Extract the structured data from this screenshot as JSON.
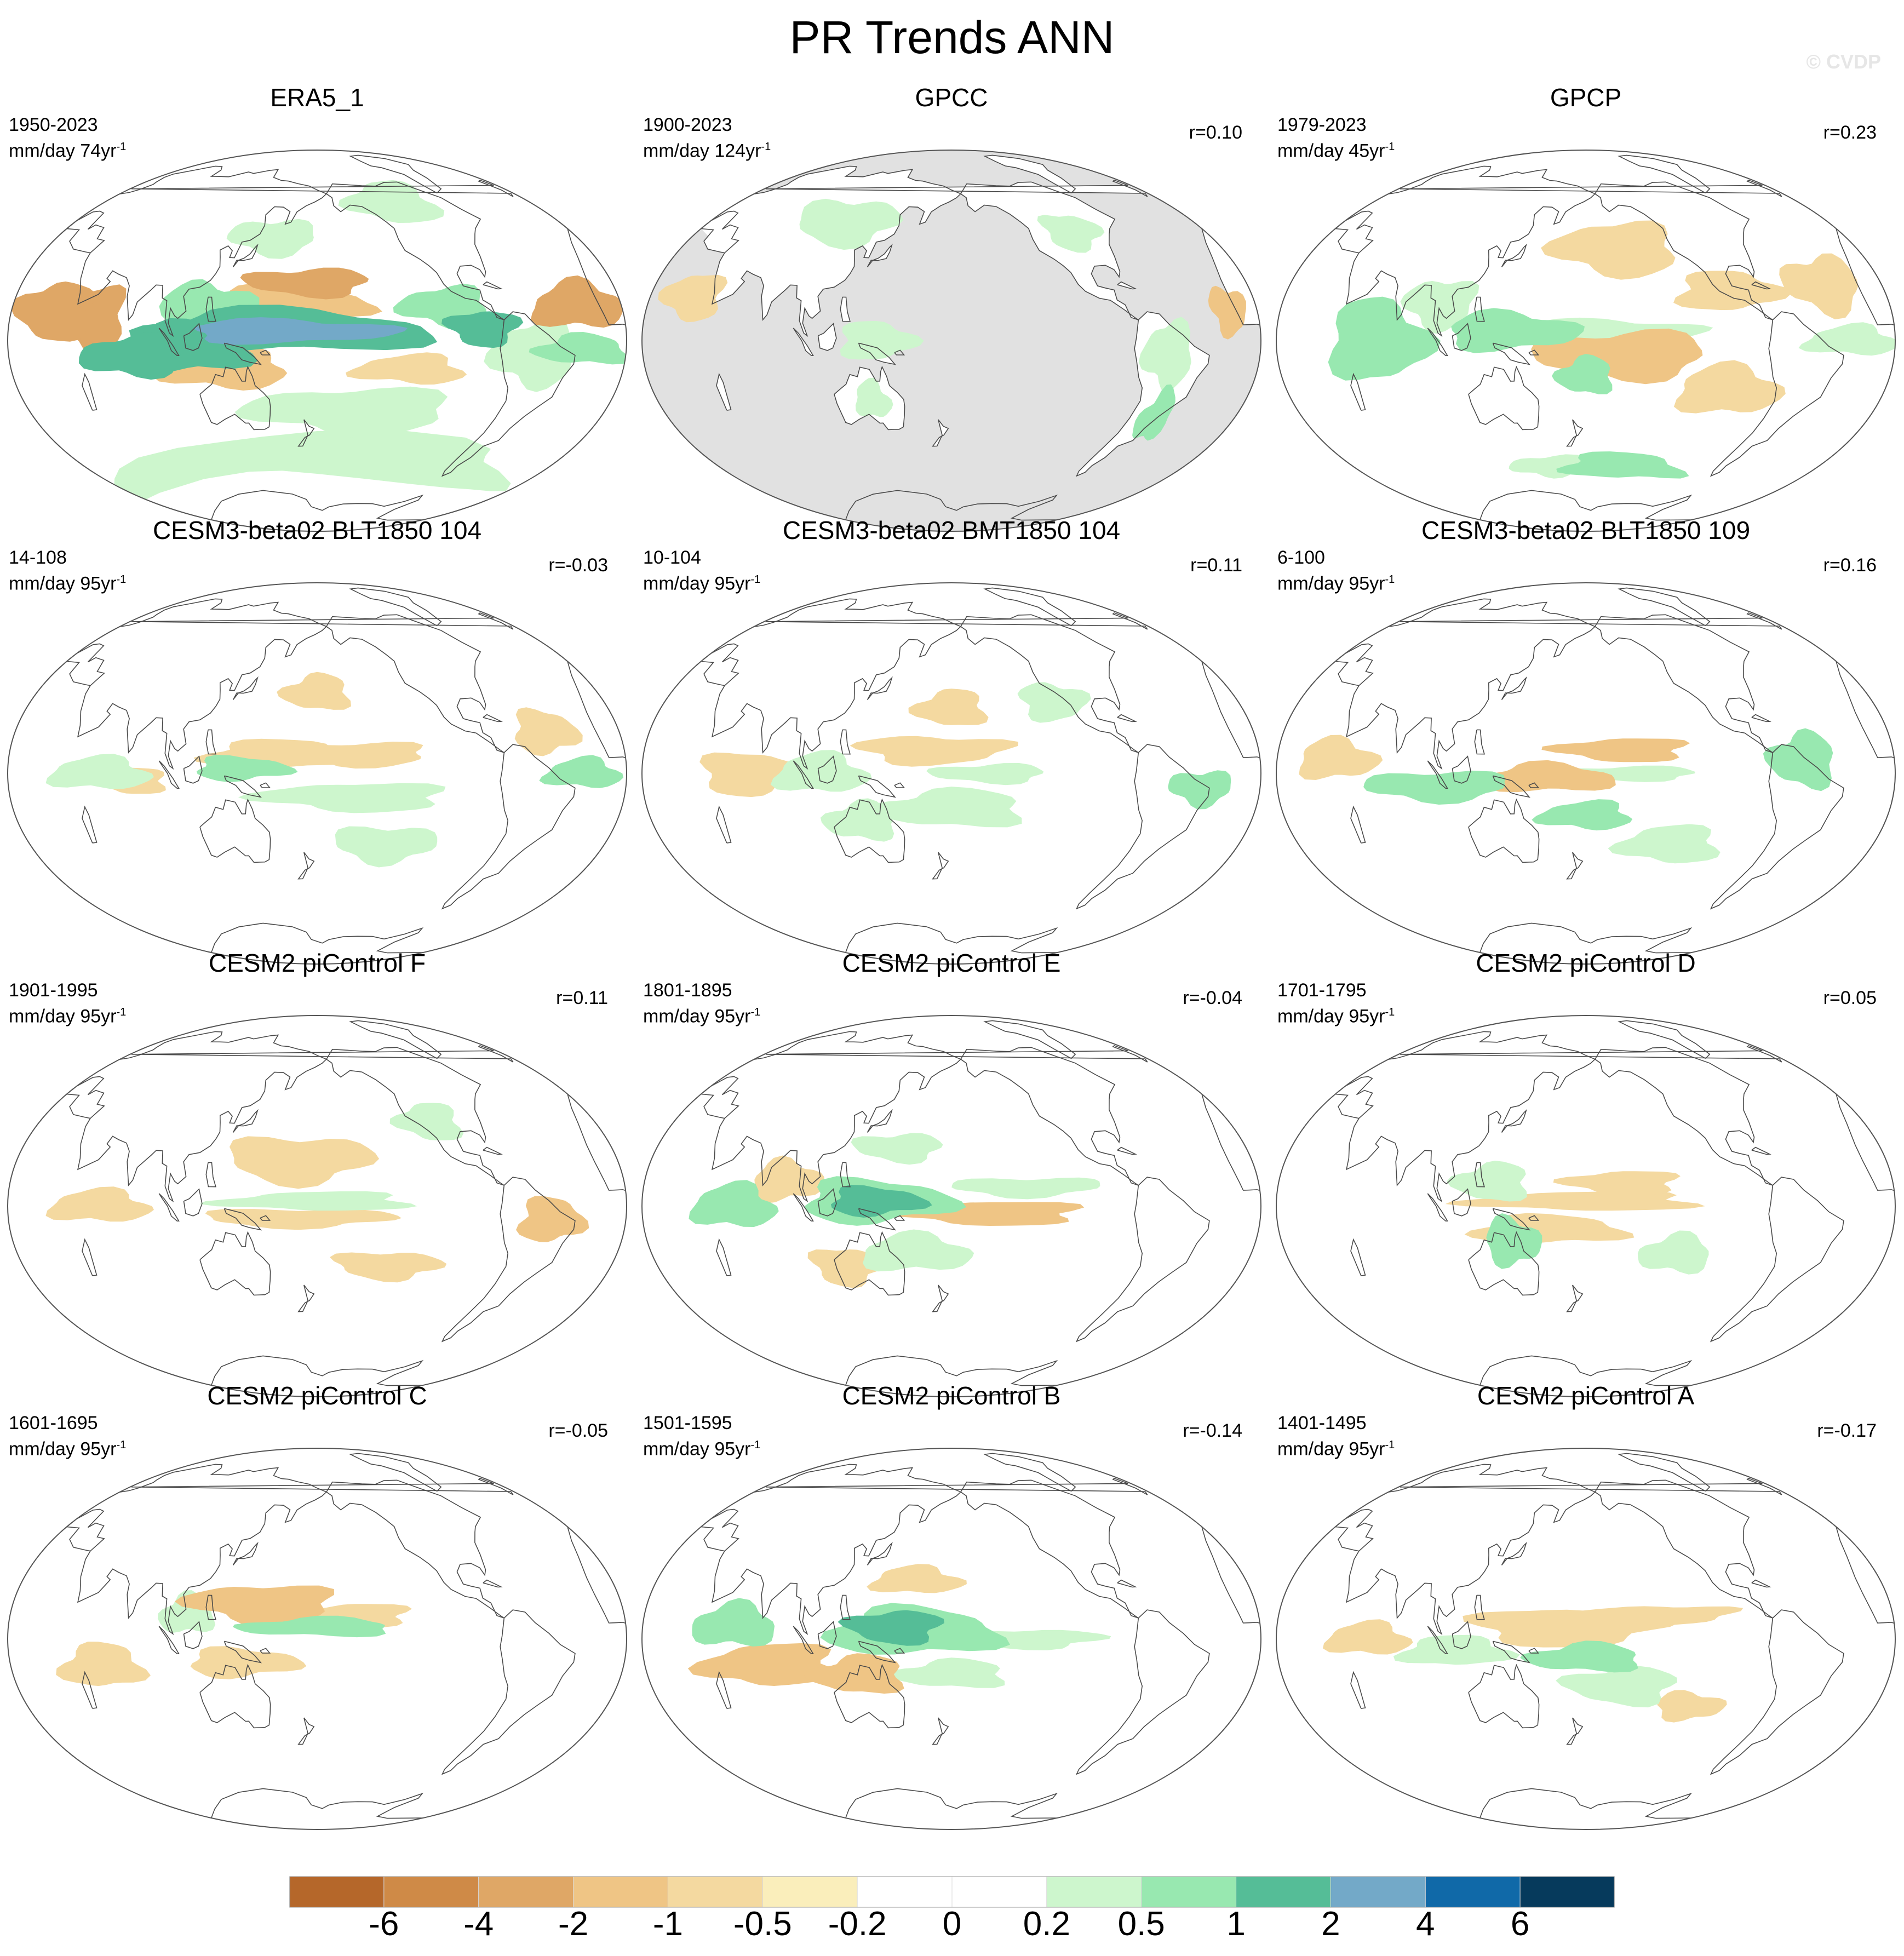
{
  "title": "PR Trends ANN",
  "watermark": "© CVDP",
  "panels": [
    {
      "title": "ERA5_1",
      "period": "1950-2023",
      "units": "mm/day 74yr",
      "units_exp": "-1",
      "corr": "",
      "mask": "none",
      "blobs": [
        {
          "lon": 165,
          "lat": 4,
          "rx": 55,
          "ry": 5,
          "level": "4"
        },
        {
          "lon": 160,
          "lat": 4,
          "rx": 80,
          "ry": 9,
          "level": "2"
        },
        {
          "lon": 160,
          "lat": 16,
          "rx": 50,
          "ry": 7,
          "level": "-1"
        },
        {
          "lon": 175,
          "lat": 25,
          "rx": 35,
          "ry": 6,
          "level": "-2"
        },
        {
          "lon": 110,
          "lat": -3,
          "rx": 35,
          "ry": 10,
          "level": "2"
        },
        {
          "lon": 80,
          "lat": -6,
          "rx": 30,
          "ry": 8,
          "level": "2"
        },
        {
          "lon": 120,
          "lat": 10,
          "rx": 25,
          "ry": 15,
          "level": "1"
        },
        {
          "lon": 130,
          "lat": -12,
          "rx": 35,
          "ry": 8,
          "level": "-1"
        },
        {
          "lon": 55,
          "lat": 8,
          "rx": 20,
          "ry": 12,
          "level": "-2"
        },
        {
          "lon": 30,
          "lat": 10,
          "rx": 25,
          "ry": 10,
          "level": "-2"
        },
        {
          "lon": 250,
          "lat": 14,
          "rx": 25,
          "ry": 8,
          "level": "1"
        },
        {
          "lon": 270,
          "lat": 5,
          "rx": 20,
          "ry": 7,
          "level": "2"
        },
        {
          "lon": 300,
          "lat": -5,
          "rx": 25,
          "ry": 12,
          "level": "0.5"
        },
        {
          "lon": 330,
          "lat": 12,
          "rx": 30,
          "ry": 8,
          "level": "-2"
        },
        {
          "lon": 330,
          "lat": -3,
          "rx": 30,
          "ry": 5,
          "level": "1"
        },
        {
          "lon": 180,
          "lat": -50,
          "rx": 180,
          "ry": 10,
          "level": "0.5"
        },
        {
          "lon": 200,
          "lat": -30,
          "rx": 60,
          "ry": 10,
          "level": "0.5"
        },
        {
          "lon": 230,
          "lat": -12,
          "rx": 30,
          "ry": 6,
          "level": "-0.5"
        },
        {
          "lon": 150,
          "lat": 45,
          "rx": 30,
          "ry": 8,
          "level": "0.5"
        },
        {
          "lon": 250,
          "lat": 60,
          "rx": 40,
          "ry": 10,
          "level": "0.5"
        }
      ]
    },
    {
      "title": "GPCC",
      "period": "1900-2023",
      "units": "mm/day 124yr",
      "units_exp": "-1",
      "corr": "r=0.10",
      "mask": "ocean",
      "blobs": [
        {
          "lon": 300,
          "lat": -5,
          "rx": 15,
          "ry": 12,
          "level": "0.5"
        },
        {
          "lon": 305,
          "lat": -28,
          "rx": 10,
          "ry": 10,
          "level": "1"
        },
        {
          "lon": 100,
          "lat": 50,
          "rx": 40,
          "ry": 10,
          "level": "0.5"
        },
        {
          "lon": 140,
          "lat": 0,
          "rx": 20,
          "ry": 8,
          "level": "0.5"
        },
        {
          "lon": 30,
          "lat": 15,
          "rx": 20,
          "ry": 8,
          "level": "-0.5"
        },
        {
          "lon": 265,
          "lat": 45,
          "rx": 20,
          "ry": 8,
          "level": "0.5"
        },
        {
          "lon": 340,
          "lat": 10,
          "rx": 12,
          "ry": 8,
          "level": "-1"
        },
        {
          "lon": 135,
          "lat": -25,
          "rx": 10,
          "ry": 8,
          "level": "0.5"
        }
      ]
    },
    {
      "title": "GPCP",
      "period": "1979-2023",
      "units": "mm/day 45yr",
      "units_exp": "-1",
      "corr": "r=0.23",
      "mask": "none",
      "blobs": [
        {
          "lon": 140,
          "lat": 4,
          "rx": 35,
          "ry": 8,
          "level": "1"
        },
        {
          "lon": 190,
          "lat": 4,
          "rx": 50,
          "ry": 5,
          "level": "0.5"
        },
        {
          "lon": 200,
          "lat": -6,
          "rx": 45,
          "ry": 10,
          "level": "-1"
        },
        {
          "lon": 180,
          "lat": -15,
          "rx": 15,
          "ry": 8,
          "level": "1"
        },
        {
          "lon": 65,
          "lat": 0,
          "rx": 30,
          "ry": 15,
          "level": "1"
        },
        {
          "lon": 100,
          "lat": 15,
          "rx": 20,
          "ry": 10,
          "level": "0.5"
        },
        {
          "lon": 260,
          "lat": 20,
          "rx": 30,
          "ry": 8,
          "level": "-0.5"
        },
        {
          "lon": 210,
          "lat": -55,
          "rx": 50,
          "ry": 6,
          "level": "1"
        },
        {
          "lon": 150,
          "lat": -55,
          "rx": 30,
          "ry": 5,
          "level": "0.5"
        },
        {
          "lon": 200,
          "lat": 40,
          "rx": 40,
          "ry": 12,
          "level": "-0.5"
        },
        {
          "lon": 320,
          "lat": 20,
          "rx": 25,
          "ry": 10,
          "level": "-0.5"
        },
        {
          "lon": 330,
          "lat": 0,
          "rx": 30,
          "ry": 5,
          "level": "0.5"
        },
        {
          "lon": 260,
          "lat": -20,
          "rx": 30,
          "ry": 10,
          "level": "-0.5"
        }
      ]
    },
    {
      "title": "CESM3-beta02 BLT1850 104",
      "period": "14-108",
      "units": "mm/day 95yr",
      "units_exp": "-1",
      "corr": "r=-0.03",
      "mask": "none",
      "blobs": [
        {
          "lon": 160,
          "lat": 8,
          "rx": 40,
          "ry": 6,
          "level": "-0.5"
        },
        {
          "lon": 200,
          "lat": 8,
          "rx": 40,
          "ry": 5,
          "level": "-0.5"
        },
        {
          "lon": 140,
          "lat": 2,
          "rx": 25,
          "ry": 5,
          "level": "1"
        },
        {
          "lon": 60,
          "lat": 0,
          "rx": 30,
          "ry": 6,
          "level": "0.5"
        },
        {
          "lon": 80,
          "lat": -3,
          "rx": 20,
          "ry": 5,
          "level": "-0.5"
        },
        {
          "lon": 330,
          "lat": 0,
          "rx": 25,
          "ry": 5,
          "level": "1"
        },
        {
          "lon": 310,
          "lat": 15,
          "rx": 20,
          "ry": 8,
          "level": "-0.5"
        },
        {
          "lon": 200,
          "lat": -10,
          "rx": 50,
          "ry": 6,
          "level": "0.5"
        },
        {
          "lon": 220,
          "lat": -30,
          "rx": 30,
          "ry": 8,
          "level": "0.5"
        },
        {
          "lon": 180,
          "lat": 35,
          "rx": 20,
          "ry": 8,
          "level": "-0.5"
        }
      ]
    },
    {
      "title": "CESM3-beta02 BMT1850 104",
      "period": "10-104",
      "units": "mm/day 95yr",
      "units_exp": "-1",
      "corr": "r=0.11",
      "mask": "none",
      "blobs": [
        {
          "lon": 170,
          "lat": 10,
          "rx": 40,
          "ry": 6,
          "level": "-0.5"
        },
        {
          "lon": 180,
          "lat": 28,
          "rx": 20,
          "ry": 8,
          "level": "-0.5"
        },
        {
          "lon": 70,
          "lat": 0,
          "rx": 30,
          "ry": 8,
          "level": "-0.5"
        },
        {
          "lon": 110,
          "lat": 0,
          "rx": 25,
          "ry": 8,
          "level": "0.5"
        },
        {
          "lon": 320,
          "lat": -5,
          "rx": 20,
          "ry": 6,
          "level": "1"
        },
        {
          "lon": 180,
          "lat": -15,
          "rx": 40,
          "ry": 8,
          "level": "0.5"
        },
        {
          "lon": 130,
          "lat": -20,
          "rx": 20,
          "ry": 8,
          "level": "0.5"
        },
        {
          "lon": 200,
          "lat": 0,
          "rx": 30,
          "ry": 4,
          "level": "0.5"
        },
        {
          "lon": 240,
          "lat": 30,
          "rx": 20,
          "ry": 8,
          "level": "0.5"
        }
      ]
    },
    {
      "title": "CESM3-beta02 BLT1850 109",
      "period": "6-100",
      "units": "mm/day 95yr",
      "units_exp": "-1",
      "corr": "r=0.16",
      "mask": "none",
      "blobs": [
        {
          "lon": 100,
          "lat": -5,
          "rx": 40,
          "ry": 6,
          "level": "1"
        },
        {
          "lon": 160,
          "lat": -2,
          "rx": 35,
          "ry": 6,
          "level": "-1"
        },
        {
          "lon": 200,
          "lat": 10,
          "rx": 35,
          "ry": 5,
          "level": "-1"
        },
        {
          "lon": 40,
          "lat": 5,
          "rx": 25,
          "ry": 7,
          "level": "-0.5"
        },
        {
          "lon": 300,
          "lat": 5,
          "rx": 20,
          "ry": 10,
          "level": "1"
        },
        {
          "lon": 180,
          "lat": -18,
          "rx": 25,
          "ry": 6,
          "level": "1"
        },
        {
          "lon": 200,
          "lat": 0,
          "rx": 40,
          "ry": 3,
          "level": "0.5"
        },
        {
          "lon": 230,
          "lat": -30,
          "rx": 30,
          "ry": 8,
          "level": "0.5"
        }
      ]
    },
    {
      "title": "CESM2 piControl F",
      "period": "1901-1995",
      "units": "mm/day 95yr",
      "units_exp": "-1",
      "corr": "r=0.11",
      "mask": "none",
      "blobs": [
        {
          "lon": 170,
          "lat": 20,
          "rx": 40,
          "ry": 10,
          "level": "-0.5"
        },
        {
          "lon": 180,
          "lat": 2,
          "rx": 50,
          "ry": 4,
          "level": "0.5"
        },
        {
          "lon": 170,
          "lat": -5,
          "rx": 50,
          "ry": 4,
          "level": "-0.5"
        },
        {
          "lon": 60,
          "lat": 0,
          "rx": 30,
          "ry": 6,
          "level": "-0.5"
        },
        {
          "lon": 310,
          "lat": -5,
          "rx": 20,
          "ry": 8,
          "level": "-1"
        },
        {
          "lon": 220,
          "lat": -25,
          "rx": 30,
          "ry": 6,
          "level": "-0.5"
        },
        {
          "lon": 250,
          "lat": 35,
          "rx": 20,
          "ry": 8,
          "level": "0.5"
        }
      ]
    },
    {
      "title": "CESM2 piControl E",
      "period": "1801-1895",
      "units": "mm/day 95yr",
      "units_exp": "-1",
      "corr": "r=-0.04",
      "mask": "none",
      "blobs": [
        {
          "lon": 140,
          "lat": 2,
          "rx": 25,
          "ry": 6,
          "level": "2"
        },
        {
          "lon": 140,
          "lat": 2,
          "rx": 40,
          "ry": 9,
          "level": "1"
        },
        {
          "lon": 200,
          "lat": -3,
          "rx": 50,
          "ry": 5,
          "level": "-1"
        },
        {
          "lon": 60,
          "lat": 0,
          "rx": 25,
          "ry": 8,
          "level": "1"
        },
        {
          "lon": 90,
          "lat": 10,
          "rx": 20,
          "ry": 8,
          "level": "-0.5"
        },
        {
          "lon": 160,
          "lat": -20,
          "rx": 30,
          "ry": 8,
          "level": "0.5"
        },
        {
          "lon": 150,
          "lat": 25,
          "rx": 25,
          "ry": 6,
          "level": "0.5"
        },
        {
          "lon": 220,
          "lat": 8,
          "rx": 40,
          "ry": 4,
          "level": "0.5"
        },
        {
          "lon": 120,
          "lat": -25,
          "rx": 20,
          "ry": 8,
          "level": "-0.5"
        }
      ]
    },
    {
      "title": "CESM2 piControl D",
      "period": "1701-1795",
      "units": "mm/day 95yr",
      "units_exp": "-1",
      "corr": "r=0.05",
      "mask": "none",
      "blobs": [
        {
          "lon": 180,
          "lat": 2,
          "rx": 60,
          "ry": 4,
          "level": "-0.5"
        },
        {
          "lon": 160,
          "lat": -10,
          "rx": 40,
          "ry": 6,
          "level": "-0.5"
        },
        {
          "lon": 200,
          "lat": 10,
          "rx": 30,
          "ry": 5,
          "level": "-0.5"
        },
        {
          "lon": 140,
          "lat": -15,
          "rx": 15,
          "ry": 10,
          "level": "1"
        },
        {
          "lon": 130,
          "lat": 10,
          "rx": 20,
          "ry": 8,
          "level": "0.5"
        },
        {
          "lon": 230,
          "lat": -20,
          "rx": 20,
          "ry": 8,
          "level": "0.5"
        }
      ]
    },
    {
      "title": "CESM2 piControl C",
      "period": "1601-1695",
      "units": "mm/day 95yr",
      "units_exp": "-1",
      "corr": "r=-0.05",
      "mask": "none",
      "blobs": [
        {
          "lon": 150,
          "lat": 15,
          "rx": 40,
          "ry": 8,
          "level": "-1"
        },
        {
          "lon": 180,
          "lat": 5,
          "rx": 40,
          "ry": 4,
          "level": "1"
        },
        {
          "lon": 200,
          "lat": 10,
          "rx": 30,
          "ry": 5,
          "level": "-0.5"
        },
        {
          "lon": 140,
          "lat": -10,
          "rx": 30,
          "ry": 6,
          "level": "-0.5"
        },
        {
          "lon": 60,
          "lat": -10,
          "rx": 25,
          "ry": 8,
          "level": "-0.5"
        },
        {
          "lon": 110,
          "lat": 10,
          "rx": 15,
          "ry": 8,
          "level": "0.5"
        }
      ]
    },
    {
      "title": "CESM2 piControl B",
      "period": "1501-1595",
      "units": "mm/day 95yr",
      "units_exp": "-1",
      "corr": "r=-0.14",
      "mask": "none",
      "blobs": [
        {
          "lon": 150,
          "lat": 5,
          "rx": 25,
          "ry": 7,
          "level": "2"
        },
        {
          "lon": 160,
          "lat": 3,
          "rx": 45,
          "ry": 10,
          "level": "1"
        },
        {
          "lon": 80,
          "lat": -10,
          "rx": 40,
          "ry": 8,
          "level": "-1"
        },
        {
          "lon": 60,
          "lat": 5,
          "rx": 25,
          "ry": 8,
          "level": "1"
        },
        {
          "lon": 130,
          "lat": -15,
          "rx": 25,
          "ry": 8,
          "level": "-1"
        },
        {
          "lon": 180,
          "lat": -15,
          "rx": 30,
          "ry": 6,
          "level": "0.5"
        },
        {
          "lon": 160,
          "lat": 25,
          "rx": 25,
          "ry": 6,
          "level": "-0.5"
        },
        {
          "lon": 220,
          "lat": 0,
          "rx": 40,
          "ry": 4,
          "level": "0.5"
        }
      ]
    },
    {
      "title": "CESM2 piControl A",
      "period": "1401-1495",
      "units": "mm/day 95yr",
      "units_exp": "-1",
      "corr": "r=-0.17",
      "mask": "none",
      "blobs": [
        {
          "lon": 180,
          "lat": -8,
          "rx": 30,
          "ry": 6,
          "level": "1"
        },
        {
          "lon": 170,
          "lat": 5,
          "rx": 50,
          "ry": 8,
          "level": "-0.5"
        },
        {
          "lon": 200,
          "lat": -20,
          "rx": 30,
          "ry": 8,
          "level": "0.5"
        },
        {
          "lon": 110,
          "lat": -5,
          "rx": 30,
          "ry": 6,
          "level": "0.5"
        },
        {
          "lon": 60,
          "lat": 0,
          "rx": 25,
          "ry": 6,
          "level": "-0.5"
        },
        {
          "lon": 220,
          "lat": 10,
          "rx": 40,
          "ry": 4,
          "level": "-0.5"
        },
        {
          "lon": 240,
          "lat": -28,
          "rx": 20,
          "ry": 6,
          "level": "-0.5"
        }
      ]
    }
  ],
  "colorbar": {
    "boundaries": [
      "-6",
      "-4",
      "-2",
      "-1",
      "-0.5",
      "-0.2",
      "0",
      "0.2",
      "0.5",
      "1",
      "2",
      "4",
      "6"
    ],
    "colors": [
      "#b5672a",
      "#cf8a47",
      "#dfa766",
      "#efc585",
      "#f4d9a0",
      "#faeebb",
      "#ffffff",
      "#ffffff",
      "#cdf6cd",
      "#98e8b0",
      "#55bd97",
      "#73a9c8",
      "#1069a8",
      "#063a5c"
    ]
  },
  "level_colors": {
    "-6": "#b5672a",
    "-4": "#cf8a47",
    "-2": "#dfa766",
    "-1": "#efc585",
    "-0.5": "#f4d9a0",
    "0.5": "#cdf6cd",
    "1": "#98e8b0",
    "2": "#55bd97",
    "4": "#73a9c8",
    "6": "#1069a8"
  }
}
